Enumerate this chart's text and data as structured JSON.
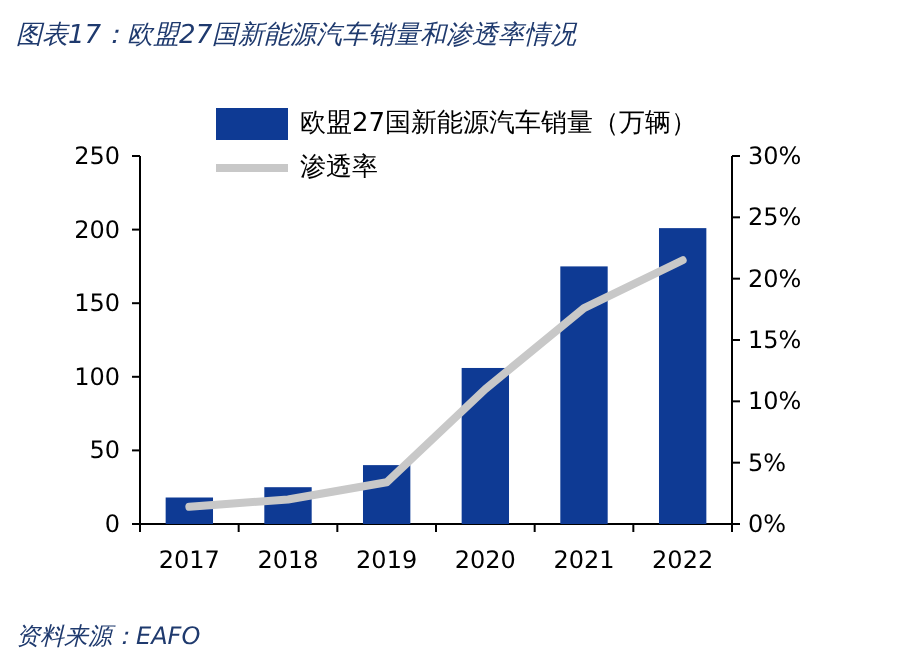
{
  "chart_data": {
    "type": "bar",
    "title": "图表17：欧盟27国新能源汽车销量和渗透率情况",
    "categories": [
      "2017",
      "2018",
      "2019",
      "2020",
      "2021",
      "2022"
    ],
    "series": [
      {
        "name": "欧盟27国新能源汽车销量（万辆）",
        "color": "#0e3a94",
        "values": [
          18,
          25,
          40,
          106,
          175,
          201
        ]
      },
      {
        "name": "渗透率",
        "type": "line",
        "axis": "y2",
        "color": "#c8c8c8",
        "values": [
          1.4,
          2.0,
          3.4,
          11.0,
          17.6,
          21.5
        ]
      }
    ],
    "ylim": [
      0,
      250
    ],
    "yticks": [
      0,
      50,
      100,
      150,
      200,
      250
    ],
    "y2lim": [
      0,
      30
    ],
    "y2ticks": [
      {
        "value": 0,
        "label": "0%"
      },
      {
        "value": 5,
        "label": "5%"
      },
      {
        "value": 10,
        "label": "10%"
      },
      {
        "value": 15,
        "label": "15%"
      },
      {
        "value": 20,
        "label": "20%"
      },
      {
        "value": 25,
        "label": "25%"
      },
      {
        "value": 30,
        "label": "30%"
      }
    ],
    "legend": "top",
    "grid": false,
    "annotations": [
      "资料来源：EAFO"
    ]
  }
}
